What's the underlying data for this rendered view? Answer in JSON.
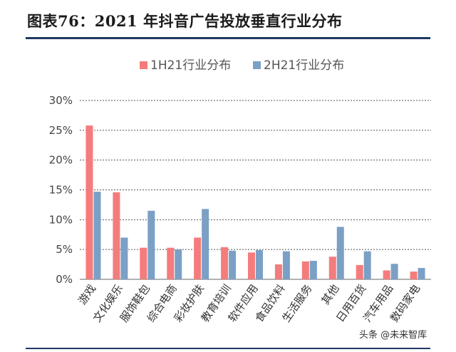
{
  "title": "图表76：2021 年抖音广告投放垂直行业分布",
  "watermark": "头条 @未来智库",
  "chart_data": {
    "type": "bar",
    "title": "图表76：2021 年抖音广告投放垂直行业分布",
    "categories": [
      "游戏",
      "文化娱乐",
      "服饰鞋包",
      "综合电商",
      "彩妆护肤",
      "教育培训",
      "软件应用",
      "食品饮料",
      "生活服务",
      "其他",
      "日用百货",
      "汽车用品",
      "数码家电"
    ],
    "series": [
      {
        "name": "1H21行业分布",
        "color": "#f47c7c",
        "values": [
          25.8,
          14.6,
          5.3,
          5.3,
          7.0,
          5.4,
          4.5,
          2.5,
          3.0,
          3.8,
          2.4,
          1.5,
          1.3
        ]
      },
      {
        "name": "2H21行业分布",
        "color": "#7ba0c6",
        "values": [
          14.7,
          7.0,
          11.5,
          5.0,
          11.8,
          4.8,
          4.9,
          4.7,
          3.1,
          8.8,
          4.7,
          2.6,
          1.9
        ]
      }
    ],
    "yticks": [
      "0%",
      "5%",
      "10%",
      "15%",
      "20%",
      "25%",
      "30%"
    ],
    "ylim": [
      0,
      30
    ],
    "xlabel": "",
    "ylabel": "",
    "legend": "top-center",
    "grid": true
  }
}
